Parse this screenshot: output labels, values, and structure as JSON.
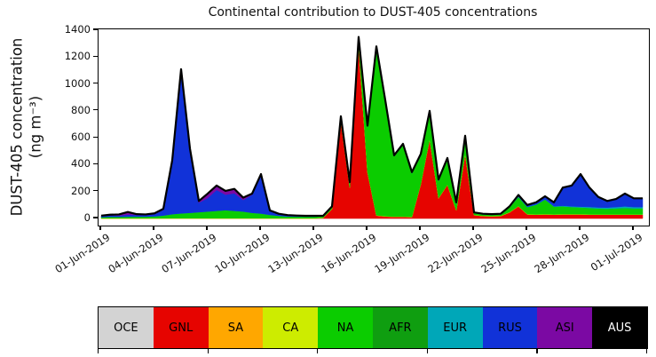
{
  "figure": {
    "title": "Continental contribution to DUST-405 concentrations",
    "ylabel_line1": "DUST-405 concentration",
    "ylabel_line2": "(ng m⁻³)"
  },
  "chart_data": {
    "type": "area",
    "stacked": true,
    "title": "Continental contribution to DUST-405 concentrations",
    "xlabel": "",
    "ylabel": "DUST-405 concentration (ng m⁻³)",
    "x_start": "01-Jun-2019",
    "x_end": "01-Jul-2019",
    "x_step_days": 0.5,
    "ylim": [
      0,
      1400
    ],
    "grid": false,
    "legend_position": "bottom-strip",
    "outline_color": "#000000",
    "y_tick_labels": [
      "0",
      "200",
      "400",
      "600",
      "800",
      "1000",
      "1200",
      "1400"
    ],
    "y_tick_values": [
      0,
      200,
      400,
      600,
      800,
      1000,
      1200,
      1400
    ],
    "x_tick_labels": [
      "01-Jun-2019",
      "04-Jun-2019",
      "07-Jun-2019",
      "10-Jun-2019",
      "13-Jun-2019",
      "16-Jun-2019",
      "19-Jun-2019",
      "22-Jun-2019",
      "25-Jun-2019",
      "28-Jun-2019",
      "01-Jul-2019"
    ],
    "series": [
      {
        "name": "OCE",
        "color": "#D3D3D3",
        "label_color": "#000000",
        "values": [
          0,
          0,
          0,
          0,
          0,
          0,
          0,
          0,
          0,
          0,
          0,
          0,
          0,
          0,
          0,
          0,
          0,
          0,
          0,
          0,
          0,
          0,
          0,
          0,
          0,
          0,
          0,
          0,
          0,
          0,
          0,
          0,
          0,
          0,
          0,
          0,
          0,
          0,
          0,
          0,
          0,
          0,
          0,
          0,
          0,
          0,
          0,
          0,
          0,
          0,
          0,
          0,
          0,
          0,
          0,
          0,
          0,
          0,
          0,
          0,
          0,
          0
        ]
      },
      {
        "name": "GNL",
        "color": "#E60400",
        "label_color": "#000000",
        "values": [
          0,
          0,
          0,
          0,
          0,
          0,
          0,
          0,
          0,
          0,
          0,
          0,
          0,
          0,
          0,
          0,
          0,
          0,
          0,
          0,
          0,
          0,
          0,
          0,
          0,
          4,
          70,
          718,
          230,
          1290,
          345,
          22,
          15,
          12,
          12,
          10,
          255,
          590,
          150,
          250,
          60,
          480,
          25,
          18,
          16,
          18,
          45,
          90,
          30,
          28,
          30,
          28,
          30,
          30,
          30,
          28,
          28,
          28,
          28,
          28,
          28,
          28
        ]
      },
      {
        "name": "SA",
        "color": "#FFA700",
        "label_color": "#000000",
        "values": [
          0,
          0,
          0,
          0,
          0,
          0,
          0,
          0,
          0,
          0,
          0,
          0,
          0,
          0,
          0,
          0,
          0,
          0,
          0,
          0,
          0,
          0,
          0,
          0,
          0,
          0,
          0,
          0,
          0,
          0,
          0,
          0,
          0,
          0,
          0,
          0,
          0,
          0,
          0,
          0,
          0,
          0,
          0,
          0,
          0,
          0,
          0,
          0,
          0,
          0,
          0,
          0,
          0,
          0,
          0,
          0,
          0,
          0,
          0,
          0,
          0,
          0
        ]
      },
      {
        "name": "CA",
        "color": "#CDEC00",
        "label_color": "#000000",
        "values": [
          2,
          2,
          2,
          2,
          2,
          2,
          2,
          2,
          2,
          2,
          2,
          2,
          2,
          2,
          2,
          2,
          2,
          2,
          2,
          2,
          2,
          2,
          2,
          2,
          2,
          2,
          2,
          2,
          2,
          2,
          2,
          2,
          2,
          2,
          2,
          2,
          2,
          2,
          2,
          2,
          2,
          2,
          2,
          2,
          2,
          2,
          2,
          2,
          2,
          2,
          2,
          2,
          2,
          2,
          2,
          2,
          2,
          2,
          2,
          2,
          2,
          2
        ]
      },
      {
        "name": "NA",
        "color": "#0BCC00",
        "label_color": "#000000",
        "values": [
          8,
          10,
          10,
          12,
          12,
          12,
          14,
          20,
          30,
          36,
          40,
          45,
          50,
          55,
          60,
          55,
          50,
          40,
          35,
          25,
          18,
          13,
          12,
          12,
          12,
          10,
          14,
          30,
          32,
          50,
          335,
          1246,
          853,
          448,
          533,
          323,
          210,
          193,
          128,
          186,
          48,
          123,
          13,
          10,
          9,
          10,
          36,
          68,
          52,
          72,
          108,
          58,
          58,
          53,
          50,
          48,
          44,
          42,
          45,
          48,
          45,
          45
        ]
      },
      {
        "name": "AFR",
        "color": "#0F9E10",
        "label_color": "#000000",
        "values": [
          0,
          0,
          0,
          0,
          0,
          0,
          0,
          0,
          0,
          0,
          0,
          0,
          0,
          0,
          0,
          0,
          0,
          0,
          0,
          0,
          0,
          0,
          0,
          0,
          0,
          0,
          0,
          0,
          0,
          0,
          0,
          0,
          0,
          0,
          0,
          0,
          0,
          0,
          0,
          0,
          0,
          0,
          0,
          0,
          0,
          0,
          0,
          0,
          0,
          0,
          0,
          0,
          0,
          0,
          0,
          0,
          0,
          0,
          0,
          0,
          0,
          0
        ]
      },
      {
        "name": "EUR",
        "color": "#00A7B8",
        "label_color": "#000000",
        "values": [
          0,
          0,
          0,
          0,
          0,
          0,
          0,
          0,
          0,
          0,
          0,
          0,
          0,
          0,
          0,
          0,
          0,
          0,
          0,
          0,
          0,
          0,
          0,
          0,
          0,
          0,
          0,
          0,
          0,
          0,
          4,
          2,
          2,
          2,
          2,
          2,
          3,
          3,
          2,
          2,
          2,
          2,
          2,
          2,
          2,
          2,
          2,
          3,
          3,
          3,
          3,
          3,
          5,
          5,
          6,
          8,
          8,
          9,
          10,
          12,
          10,
          10
        ]
      },
      {
        "name": "RUS",
        "color": "#1132D8",
        "label_color": "#000000",
        "values": [
          8,
          12,
          10,
          14,
          12,
          12,
          16,
          42,
          390,
          1058,
          465,
          70,
          100,
          155,
          115,
          130,
          85,
          135,
          285,
          30,
          13,
          8,
          6,
          4,
          4,
          4,
          4,
          10,
          6,
          8,
          4,
          8,
          8,
          6,
          6,
          8,
          10,
          12,
          8,
          10,
          8,
          8,
          3,
          3,
          3,
          3,
          5,
          12,
          13,
          15,
          22,
          29,
          135,
          155,
          242,
          144,
          78,
          49,
          60,
          95,
          65,
          65
        ]
      },
      {
        "name": "ASI",
        "color": "#7B09A3",
        "label_color": "#000000",
        "values": [
          3,
          4,
          8,
          20,
          6,
          4,
          6,
          8,
          10,
          14,
          13,
          13,
          33,
          33,
          28,
          33,
          18,
          8,
          8,
          3,
          2,
          2,
          2,
          2,
          2,
          0,
          0,
          0,
          0,
          0,
          0,
          0,
          0,
          0,
          0,
          0,
          0,
          0,
          0,
          0,
          0,
          0,
          0,
          0,
          0,
          0,
          0,
          0,
          0,
          0,
          0,
          0,
          0,
          0,
          0,
          0,
          0,
          0,
          0,
          0,
          0,
          0
        ]
      },
      {
        "name": "AUS",
        "color": "#000000",
        "label_color": "#ffffff",
        "values": [
          0,
          0,
          0,
          0,
          0,
          0,
          0,
          0,
          0,
          0,
          0,
          0,
          0,
          0,
          0,
          0,
          0,
          0,
          0,
          0,
          0,
          0,
          0,
          0,
          0,
          0,
          0,
          0,
          0,
          0,
          0,
          0,
          0,
          0,
          0,
          0,
          0,
          0,
          0,
          0,
          0,
          0,
          0,
          0,
          0,
          0,
          0,
          0,
          0,
          0,
          0,
          0,
          0,
          0,
          0,
          0,
          0,
          0,
          0,
          0,
          0,
          0
        ]
      }
    ]
  },
  "legend": {
    "entries": [
      {
        "label": "OCE",
        "color": "#D3D3D3",
        "text": "#000000"
      },
      {
        "label": "GNL",
        "color": "#E60400",
        "text": "#000000"
      },
      {
        "label": "SA",
        "color": "#FFA700",
        "text": "#000000"
      },
      {
        "label": "CA",
        "color": "#CDEC00",
        "text": "#000000"
      },
      {
        "label": "NA",
        "color": "#0BCC00",
        "text": "#000000"
      },
      {
        "label": "AFR",
        "color": "#0F9E10",
        "text": "#000000"
      },
      {
        "label": "EUR",
        "color": "#00A7B8",
        "text": "#000000"
      },
      {
        "label": "RUS",
        "color": "#1132D8",
        "text": "#000000"
      },
      {
        "label": "ASI",
        "color": "#7B09A3",
        "text": "#000000"
      },
      {
        "label": "AUS",
        "color": "#000000",
        "text": "#ffffff"
      }
    ]
  }
}
